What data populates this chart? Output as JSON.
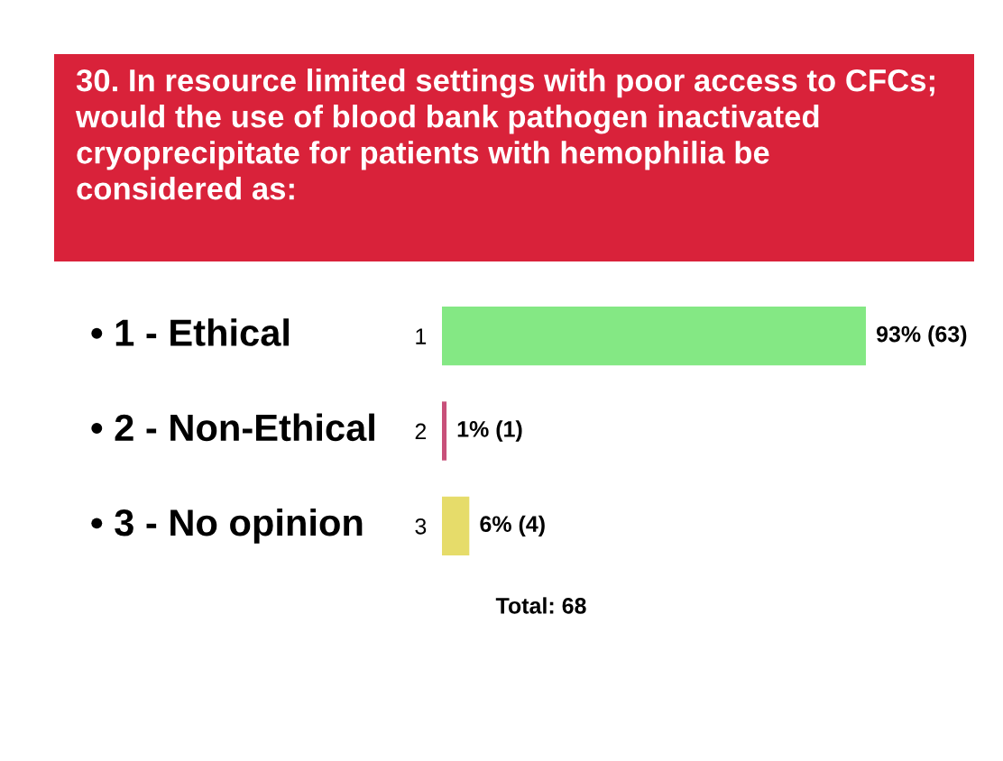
{
  "chart_data": {
    "type": "bar",
    "orientation": "horizontal",
    "title": "30. In resource limited settings with poor access to CFCs; would the use of blood bank pathogen inactivated cryoprecipitate for patients with hemophilia be considered as:",
    "categories": [
      "1",
      "2",
      "3"
    ],
    "values": [
      93,
      1,
      6
    ],
    "colors": [
      "#84e884",
      "#c8507a",
      "#e6dc6a"
    ],
    "value_labels": [
      "93% (63)",
      "1% (1)",
      "6% (4)"
    ],
    "annotations": [
      "• 1 - Ethical",
      "• 2 - Non-Ethical",
      "• 3 - No opinion",
      "Total: 68"
    ],
    "grid": false,
    "legend": false
  }
}
